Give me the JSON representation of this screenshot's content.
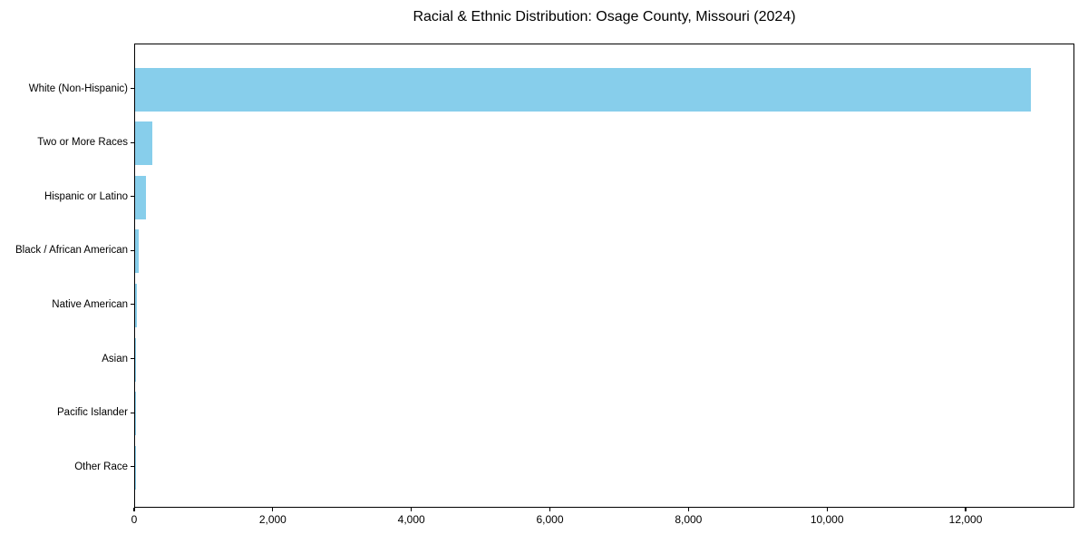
{
  "chart_data": {
    "type": "bar",
    "orientation": "horizontal",
    "title": "Racial & Ethnic Distribution: Osage County, Missouri (2024)",
    "categories": [
      "White (Non-Hispanic)",
      "Two or More Races",
      "Hispanic or Latino",
      "Black / African American",
      "Native American",
      "Asian",
      "Pacific Islander",
      "Other Race"
    ],
    "values": [
      12930,
      255,
      160,
      55,
      25,
      15,
      5,
      5
    ],
    "xlabel": "",
    "ylabel": "",
    "xlim": [
      0,
      13570
    ],
    "x_ticks": [
      0,
      2000,
      4000,
      6000,
      8000,
      10000,
      12000
    ],
    "x_tick_labels": [
      "0",
      "2,000",
      "4,000",
      "6,000",
      "8,000",
      "10,000",
      "12,000"
    ],
    "grid": false,
    "legend_position": "none",
    "bar_color": "#87CEEB",
    "frame_color": "#000000",
    "background_color": "#ffffff"
  }
}
